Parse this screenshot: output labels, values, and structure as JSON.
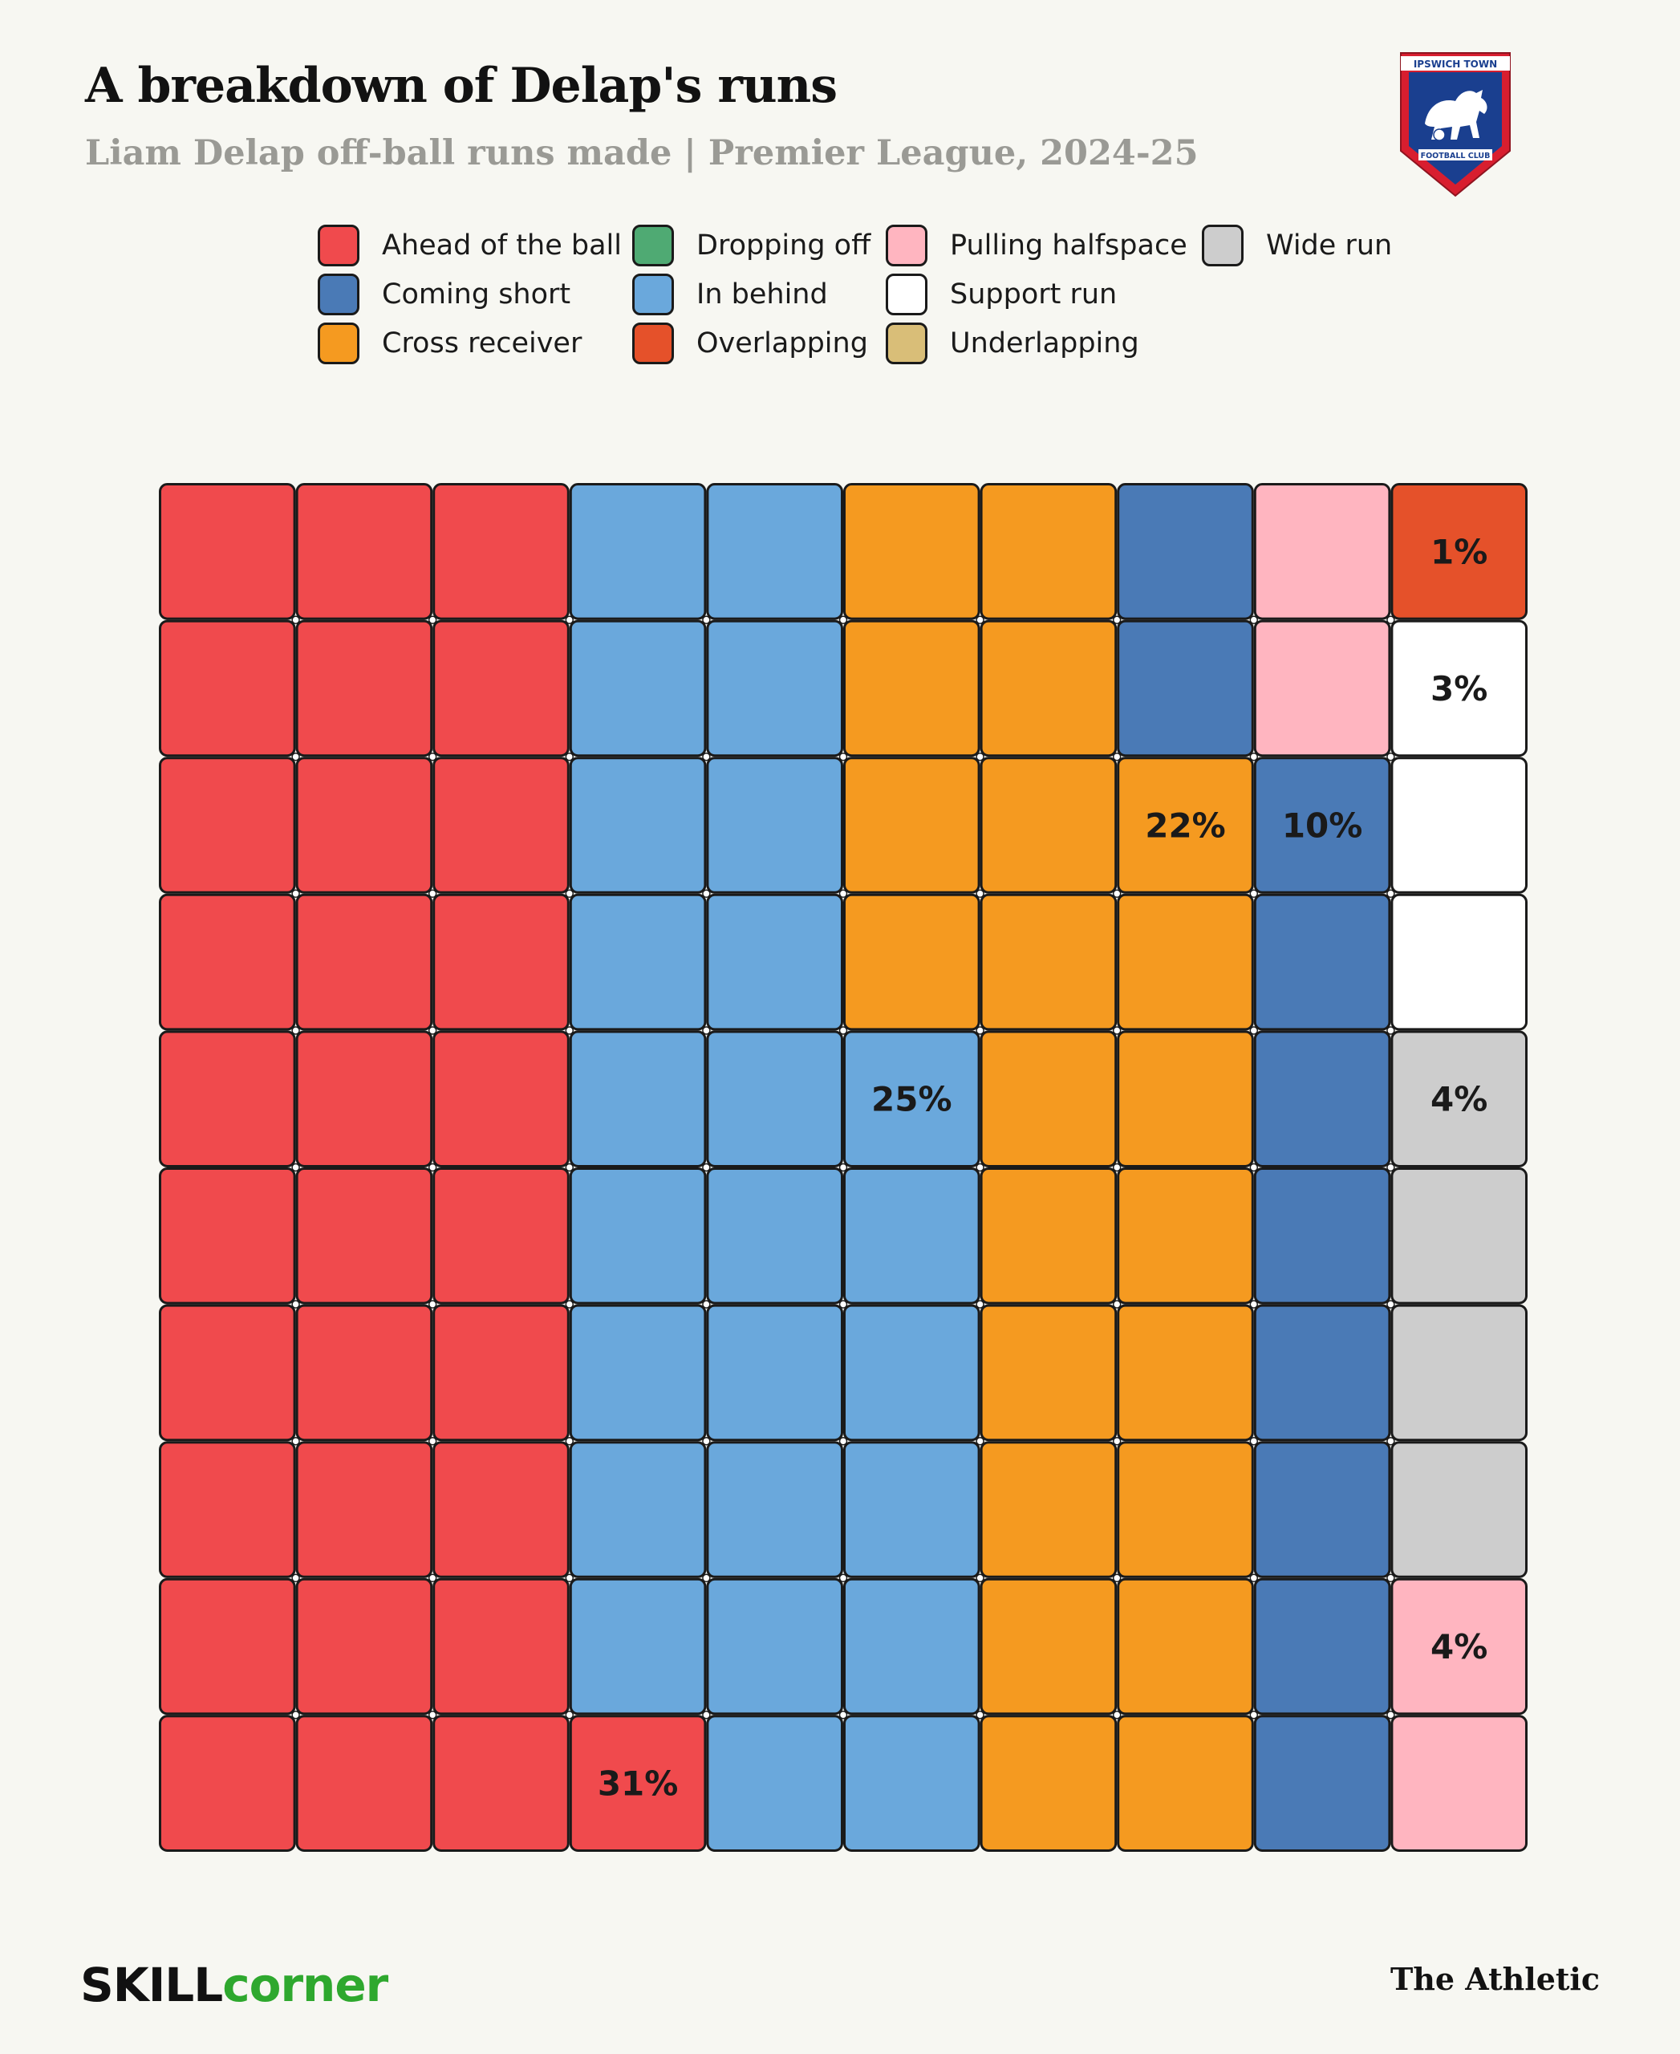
{
  "header": {
    "title": "A breakdown of Delap's runs",
    "subtitle": "Liam Delap off-ball runs made | Premier League, 2024-25"
  },
  "logo": {
    "name": "Ipswich Town FC crest",
    "top_text": "IPSWICH TOWN",
    "bottom_text": "FOOTBALL CLUB",
    "colors": {
      "red": "#d81e2f",
      "blue": "#1a3f8f",
      "white": "#ffffff"
    }
  },
  "legend": [
    {
      "label": "Ahead of the ball",
      "color": "#f04a4d"
    },
    {
      "label": "Coming short",
      "color": "#4a7ab6"
    },
    {
      "label": "Cross receiver",
      "color": "#f59a20"
    },
    {
      "label": "Dropping off",
      "color": "#4faa73"
    },
    {
      "label": "In behind",
      "color": "#6aa8dc"
    },
    {
      "label": "Overlapping",
      "color": "#e5512a"
    },
    {
      "label": "Pulling halfspace",
      "color": "#ffb5c0"
    },
    {
      "label": "Support run",
      "color": "#ffffff"
    },
    {
      "label": "Underlapping",
      "color": "#d9be78"
    },
    {
      "label": "Wide run",
      "color": "#cdcdcd"
    }
  ],
  "chart_data": {
    "type": "waffle",
    "title": "A breakdown of Delap's runs",
    "subtitle": "Liam Delap off-ball runs made | Premier League, 2024-25",
    "grid": {
      "rows": 10,
      "cols": 10,
      "fill_order": "column-major, bottom-to-top within each column"
    },
    "categories": [
      "Ahead of the ball",
      "In behind",
      "Cross receiver",
      "Coming short",
      "Pulling halfspace",
      "Wide run",
      "Support run",
      "Overlapping"
    ],
    "values": [
      31,
      25,
      22,
      10,
      4,
      4,
      3,
      1
    ],
    "labels": [
      "31%",
      "25%",
      "22%",
      "10%",
      "4%",
      "4%",
      "3%",
      "1%"
    ],
    "colors": [
      "#f04a4d",
      "#6aa8dc",
      "#f59a20",
      "#4a7ab6",
      "#ffb5c0",
      "#cdcdcd",
      "#ffffff",
      "#e5512a"
    ],
    "zero_categories": [
      "Dropping off",
      "Underlapping"
    ]
  },
  "footer": {
    "source_brand_part1": "SKILL",
    "source_brand_part2": "CORNER",
    "publisher": "The Athletic"
  }
}
